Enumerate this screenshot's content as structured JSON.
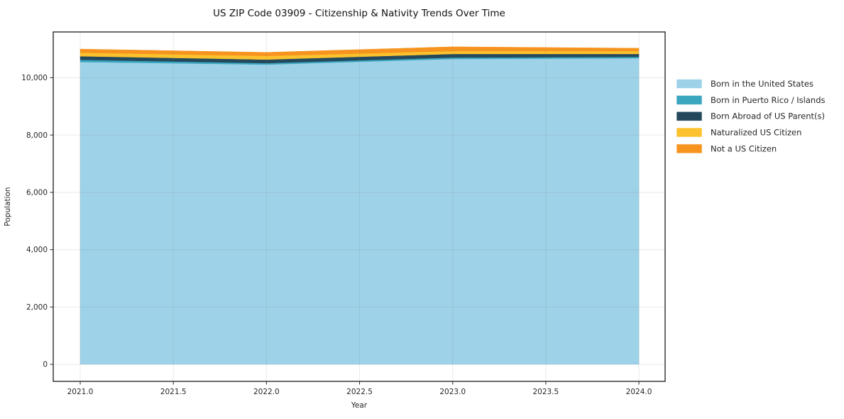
{
  "chart_data": {
    "type": "area",
    "stacked": true,
    "title": "US ZIP Code 03909 - Citizenship & Nativity Trends Over Time",
    "xlabel": "Year",
    "ylabel": "Population",
    "x": [
      2021,
      2022,
      2023,
      2024
    ],
    "series": [
      {
        "name": "Born in the United States",
        "color": "#9ed2e8",
        "values": [
          10550,
          10460,
          10655,
          10680
        ]
      },
      {
        "name": "Born in Puerto Rico / Islands",
        "color": "#3aa6bf",
        "values": [
          75,
          50,
          50,
          50
        ]
      },
      {
        "name": "Born Abroad of US Parent(s)",
        "color": "#24495c",
        "values": [
          125,
          125,
          125,
          100
        ]
      },
      {
        "name": "Naturalized US Citizen",
        "color": "#fcc22d",
        "values": [
          125,
          125,
          100,
          100
        ]
      },
      {
        "name": "Not a US Citizen",
        "color": "#f7941f",
        "values": [
          125,
          125,
          150,
          100
        ]
      }
    ],
    "totals": [
      11000,
      10885,
      11080,
      11030
    ],
    "x_ticks": [
      "2021.0",
      "2021.5",
      "2022.0",
      "2022.5",
      "2023.0",
      "2023.5",
      "2024.0"
    ],
    "x_tick_values": [
      2021,
      2021.5,
      2022,
      2022.5,
      2023,
      2023.5,
      2024
    ],
    "y_ticks": [
      "0",
      "2,000",
      "4,000",
      "6,000",
      "8,000",
      "10,000"
    ],
    "y_tick_values": [
      0,
      2000,
      4000,
      6000,
      8000,
      10000
    ],
    "xlim": [
      2020.8551,
      2024.1408
    ],
    "ylim": [
      -595,
      11597
    ],
    "grid": true,
    "legend_position": "right-outside",
    "colors": {
      "spine": "#1a1a1a",
      "tick": "#262626",
      "grid": "rgba(125,125,125,0.17)",
      "background": "#ffffff"
    }
  }
}
